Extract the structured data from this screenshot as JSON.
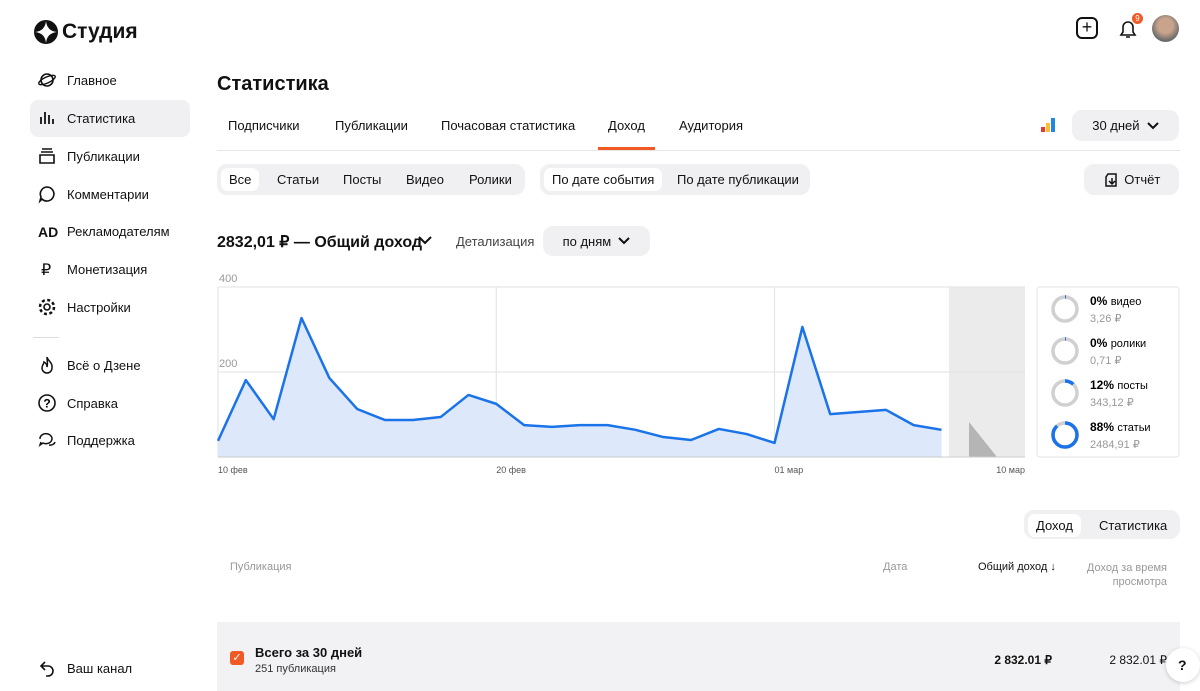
{
  "header": {
    "logo": "Студия",
    "notification_count": "9"
  },
  "sidebar": {
    "items": [
      "Главное",
      "Статистика",
      "Публикации",
      "Комментарии",
      "Рекламодателям",
      "Монетизация",
      "Настройки"
    ],
    "ad_icon": "AD",
    "money_icon": "₽",
    "secondary": [
      "Всё о Дзене",
      "Справка",
      "Поддержка"
    ],
    "footer": "Ваш канал"
  },
  "page": {
    "title": "Статистика",
    "tabs": [
      "Подписчики",
      "Публикации",
      "Почасовая статистика",
      "Доход",
      "Аудитория"
    ],
    "period": "30 дней",
    "filters": [
      "Все",
      "Статьи",
      "Посты",
      "Видео",
      "Ролики"
    ],
    "date_modes": [
      "По дате события",
      "По дате публикации"
    ],
    "report": "Отчёт",
    "total": "2832,01 ₽ — Общий доход",
    "detail_label": "Детализация",
    "detail_value": "по дням"
  },
  "chart_data": {
    "type": "line",
    "categories": [
      "10 фев",
      null,
      null,
      null,
      null,
      null,
      null,
      null,
      null,
      null,
      "20 фев",
      null,
      null,
      null,
      null,
      null,
      null,
      null,
      null,
      null,
      "01 мар",
      null,
      null,
      null,
      null,
      null,
      null,
      null,
      null,
      "10 мар"
    ],
    "values": [
      38,
      181,
      89,
      327,
      186,
      113,
      87,
      87,
      94,
      146,
      125,
      75,
      71,
      75,
      75,
      64,
      47,
      40,
      66,
      54,
      33,
      306,
      101,
      106,
      111,
      75,
      64,
      null,
      null,
      null
    ],
    "color": "#1a73e8",
    "fill": "#dde8fb",
    "ylim": [
      0,
      400
    ],
    "yticks": [
      0,
      200,
      400
    ],
    "grid": true
  },
  "breakdown": [
    {
      "percent": 0,
      "percent_label": "0%",
      "name": "видео",
      "amount": "3,26 ₽"
    },
    {
      "percent": 0,
      "percent_label": "0%",
      "name": "ролики",
      "amount": "0,71 ₽"
    },
    {
      "percent": 12,
      "percent_label": "12%",
      "name": "посты",
      "amount": "343,12 ₽"
    },
    {
      "percent": 88,
      "percent_label": "88%",
      "name": "статьи",
      "amount": "2484,91 ₽"
    }
  ],
  "table": {
    "toggle": [
      "Доход",
      "Статистика"
    ],
    "columns": [
      "Публикация",
      "Дата",
      "Общий доход ↓",
      "Доход за время просмотра"
    ],
    "rows": [
      [
        "Всего за 30 дней",
        "251 публикация",
        "2 832.01 ₽",
        "2 832.01 ₽"
      ]
    ]
  },
  "help": "?"
}
